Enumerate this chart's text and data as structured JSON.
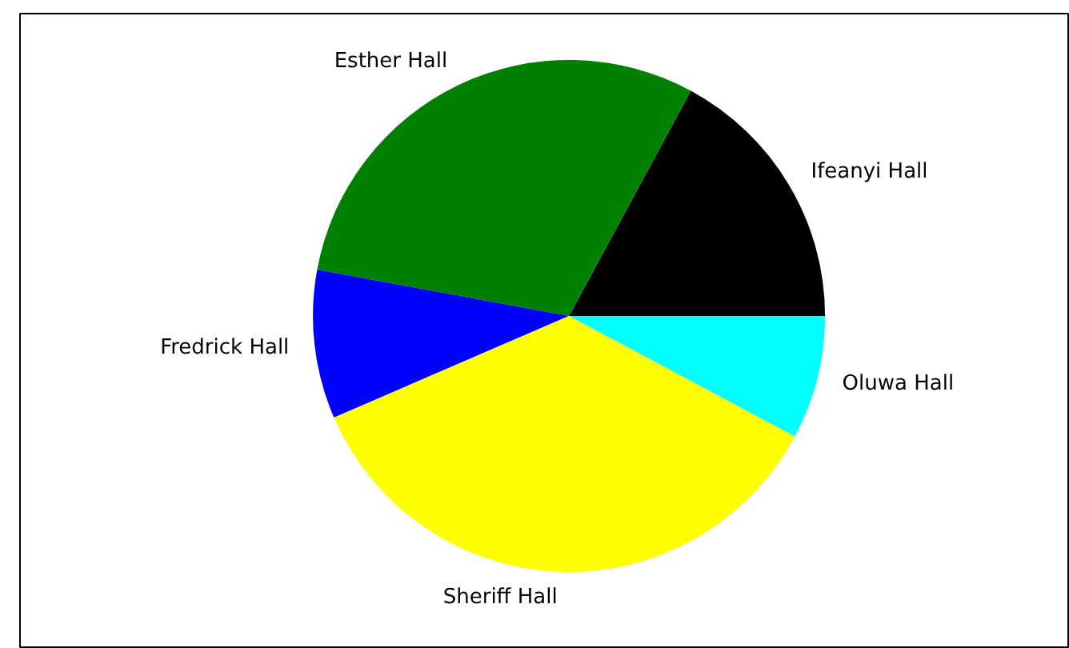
{
  "chart_data": {
    "type": "pie",
    "categories": [
      "Ifeanyi Hall",
      "Esther Hall",
      "Fredrick Hall",
      "Sheriff Hall",
      "Oluwa Hall"
    ],
    "values": [
      17.1,
      30.0,
      9.4,
      35.7,
      7.8
    ],
    "colors": [
      "#000000",
      "#008000",
      "#0000ff",
      "#ffff00",
      "#00ffff"
    ]
  }
}
